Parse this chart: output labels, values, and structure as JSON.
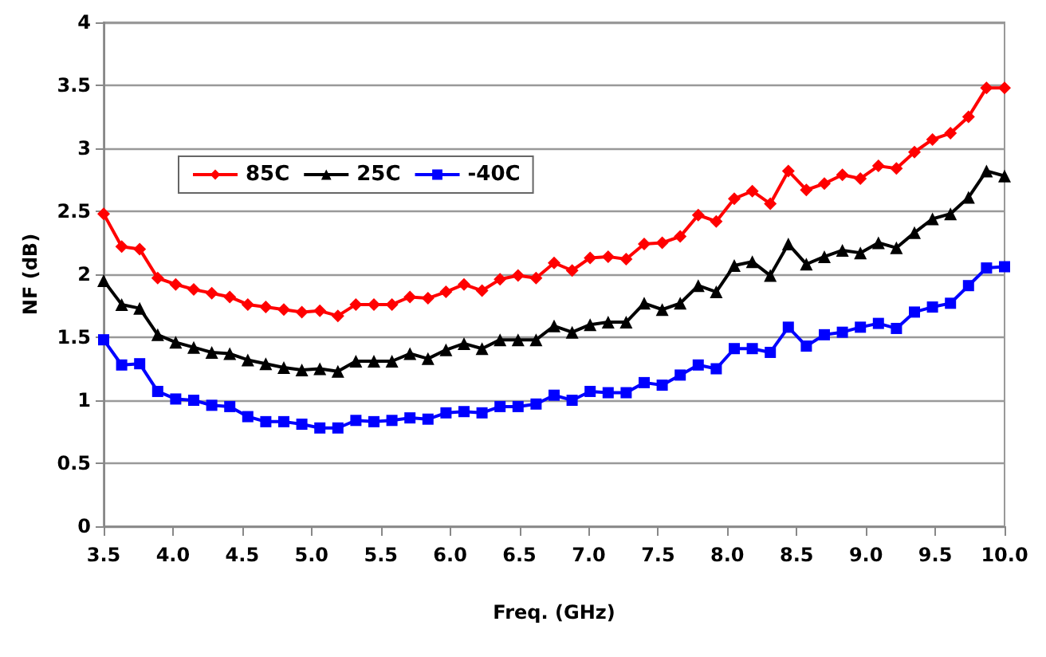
{
  "chart_data": {
    "type": "line",
    "xlabel": "Freq. (GHz)",
    "ylabel": "NF (dB)",
    "x": [
      3.5,
      3.63,
      3.76,
      3.89,
      4.02,
      4.15,
      4.28,
      4.41,
      4.54,
      4.67,
      4.8,
      4.93,
      5.06,
      5.19,
      5.32,
      5.45,
      5.58,
      5.71,
      5.84,
      5.97,
      6.1,
      6.23,
      6.36,
      6.49,
      6.62,
      6.75,
      6.88,
      7.01,
      7.14,
      7.27,
      7.4,
      7.53,
      7.66,
      7.79,
      7.92,
      8.05,
      8.18,
      8.31,
      8.44,
      8.57,
      8.7,
      8.83,
      8.96,
      9.09,
      9.22,
      9.35,
      9.48,
      9.61,
      9.74,
      9.87,
      10.0
    ],
    "series": [
      {
        "name": "85C",
        "color": "#ff0000",
        "marker": "diamond",
        "values": [
          2.48,
          2.22,
          2.2,
          1.97,
          1.92,
          1.88,
          1.85,
          1.82,
          1.76,
          1.74,
          1.72,
          1.7,
          1.71,
          1.67,
          1.76,
          1.76,
          1.76,
          1.82,
          1.81,
          1.86,
          1.92,
          1.87,
          1.96,
          1.99,
          1.97,
          2.09,
          2.03,
          2.13,
          2.14,
          2.12,
          2.24,
          2.25,
          2.3,
          2.47,
          2.42,
          2.6,
          2.66,
          2.56,
          2.82,
          2.67,
          2.72,
          2.79,
          2.76,
          2.86,
          2.84,
          2.97,
          3.07,
          3.12,
          3.25,
          3.48,
          3.48
        ]
      },
      {
        "name": "25C",
        "color": "#000000",
        "marker": "triangle",
        "values": [
          1.95,
          1.76,
          1.73,
          1.52,
          1.46,
          1.42,
          1.38,
          1.37,
          1.32,
          1.29,
          1.26,
          1.24,
          1.25,
          1.23,
          1.31,
          1.31,
          1.31,
          1.37,
          1.33,
          1.4,
          1.45,
          1.41,
          1.48,
          1.48,
          1.48,
          1.59,
          1.54,
          1.6,
          1.62,
          1.62,
          1.77,
          1.72,
          1.77,
          1.91,
          1.86,
          2.07,
          2.1,
          1.99,
          2.24,
          2.08,
          2.14,
          2.19,
          2.17,
          2.25,
          2.21,
          2.33,
          2.44,
          2.48,
          2.61,
          2.82,
          2.78
        ]
      },
      {
        "name": "-40C",
        "color": "#0000ff",
        "marker": "square",
        "values": [
          1.48,
          1.28,
          1.29,
          1.07,
          1.01,
          1.0,
          0.96,
          0.95,
          0.87,
          0.83,
          0.83,
          0.81,
          0.78,
          0.78,
          0.84,
          0.83,
          0.84,
          0.86,
          0.85,
          0.9,
          0.91,
          0.9,
          0.95,
          0.95,
          0.97,
          1.04,
          1.0,
          1.07,
          1.06,
          1.06,
          1.14,
          1.12,
          1.2,
          1.28,
          1.25,
          1.41,
          1.41,
          1.38,
          1.58,
          1.43,
          1.52,
          1.54,
          1.58,
          1.61,
          1.57,
          1.7,
          1.74,
          1.77,
          1.91,
          2.05,
          2.06
        ]
      }
    ],
    "xlim": [
      3.5,
      10.0
    ],
    "xticks": [
      3.5,
      {
        "value": 4,
        "label": "4.0"
      },
      4.5,
      {
        "value": 5,
        "label": "5.0"
      },
      5.5,
      {
        "value": 6,
        "label": "6.0"
      },
      6.5,
      {
        "value": 7,
        "label": "7.0"
      },
      7.5,
      {
        "value": 8,
        "label": "8.0"
      },
      8.5,
      {
        "value": 9,
        "label": "9.0"
      },
      9.5,
      {
        "value": 10,
        "label": "10.0"
      }
    ],
    "ylim": [
      0,
      4
    ],
    "yticks": [
      0,
      0.5,
      1,
      1.5,
      2,
      2.5,
      3,
      3.5,
      4
    ],
    "grid": "y",
    "legend": "top left",
    "line_style": "solid"
  }
}
